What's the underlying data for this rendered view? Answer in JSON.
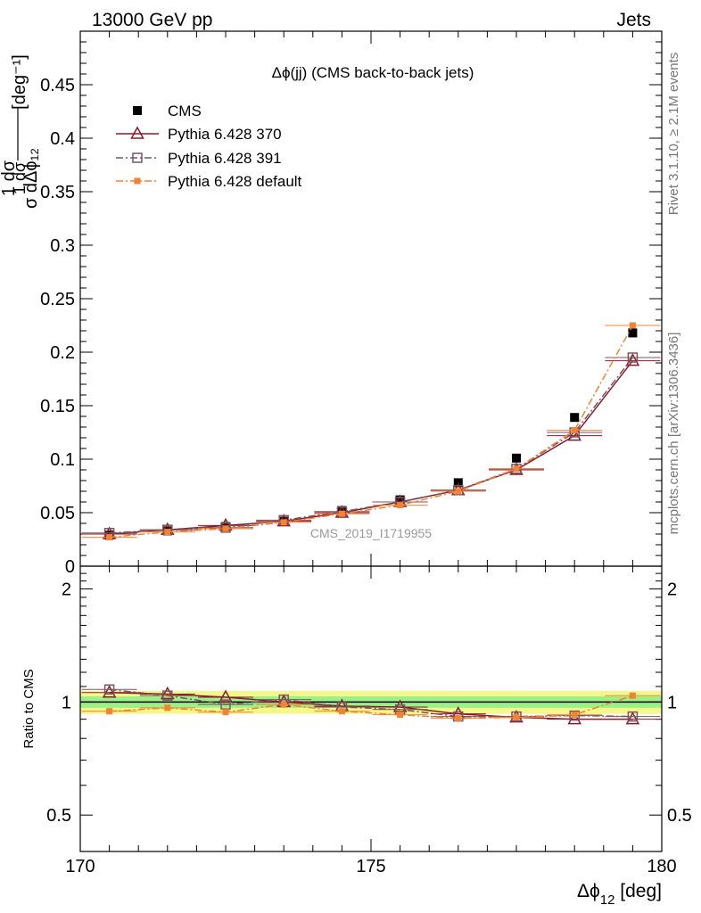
{
  "header": {
    "left": "13000 GeV pp",
    "right": "Jets"
  },
  "side_labels": {
    "rivet": "Rivet 3.1.10, ≥ 2.1M events",
    "mcplots": "mcplots.cern.ch [arXiv:1306.3436]"
  },
  "chart_data": [
    {
      "type": "scatter",
      "panel": "main",
      "title": "Δϕ(jj) (CMS back-to-back jets)",
      "watermark": "CMS_2019_I1719955",
      "ylabel": "1/σ dσ/dΔϕ_12 [deg^-1]",
      "ylim": [
        0,
        0.5
      ],
      "yticks": [
        0,
        0.05,
        0.1,
        0.15,
        0.2,
        0.25,
        0.3,
        0.35,
        0.4,
        0.45
      ],
      "ytick_labels": [
        "0",
        "0.05",
        "0.1",
        "0.15",
        "0.2",
        "0.25",
        "0.3",
        "0.35",
        "0.4",
        "0.45"
      ],
      "xlim": [
        170,
        180
      ],
      "x": [
        170.5,
        171.5,
        172.5,
        173.5,
        174.5,
        175.5,
        176.5,
        177.5,
        178.5,
        179.5
      ],
      "legend_position": "top-left",
      "series": [
        {
          "name": "CMS",
          "color": "#000000",
          "marker": "filled-square",
          "line": "none",
          "values": [
            0.029,
            0.033,
            0.037,
            0.042,
            0.052,
            0.062,
            0.078,
            0.101,
            0.139,
            0.218
          ]
        },
        {
          "name": "Pythia 6.428 370",
          "color": "#8b1a2b",
          "marker": "open-triangle",
          "line": "solid",
          "values": [
            0.03,
            0.034,
            0.038,
            0.042,
            0.05,
            0.06,
            0.071,
            0.09,
            0.122,
            0.192
          ]
        },
        {
          "name": "Pythia 6.428 391",
          "color": "#7a5560",
          "marker": "open-square",
          "line": "dashdot",
          "values": [
            0.031,
            0.034,
            0.036,
            0.043,
            0.051,
            0.06,
            0.071,
            0.091,
            0.125,
            0.195
          ]
        },
        {
          "name": "Pythia 6.428 default",
          "color": "#f58231",
          "marker": "small-filled-square",
          "line": "dashdot",
          "values": [
            0.027,
            0.032,
            0.035,
            0.041,
            0.049,
            0.057,
            0.07,
            0.091,
            0.127,
            0.225
          ]
        }
      ]
    },
    {
      "type": "scatter",
      "panel": "ratio",
      "ylabel": "Ratio to CMS",
      "ylim": [
        0.4,
        2.3
      ],
      "yscale": "log",
      "yticks": [
        0.5,
        1,
        2
      ],
      "ytick_labels": [
        "0.5",
        "1",
        "2"
      ],
      "xlabel": "Δϕ_12 [deg]",
      "xlim": [
        170,
        180
      ],
      "xticks": [
        170,
        175,
        180
      ],
      "xtick_labels": [
        "170",
        "175",
        "180"
      ],
      "x": [
        170.5,
        171.5,
        172.5,
        173.5,
        174.5,
        175.5,
        176.5,
        177.5,
        178.5,
        179.5
      ],
      "bands": {
        "inner": 0.035,
        "outer": 0.07
      },
      "series": [
        {
          "name": "Pythia 6.428 370",
          "color": "#8b1a2b",
          "marker": "open-triangle",
          "line": "solid",
          "values": [
            1.06,
            1.05,
            1.03,
            1.0,
            0.975,
            0.97,
            0.93,
            0.91,
            0.9,
            0.9
          ]
        },
        {
          "name": "Pythia 6.428 391",
          "color": "#7a5560",
          "marker": "open-square",
          "line": "dashdot",
          "values": [
            1.08,
            1.04,
            0.985,
            1.015,
            0.97,
            0.955,
            0.915,
            0.915,
            0.92,
            0.915
          ]
        },
        {
          "name": "Pythia 6.428 default",
          "color": "#f58231",
          "marker": "small-filled-square",
          "line": "dashdot",
          "values": [
            0.945,
            0.965,
            0.94,
            0.985,
            0.945,
            0.925,
            0.905,
            0.91,
            0.925,
            1.04
          ]
        }
      ]
    }
  ]
}
